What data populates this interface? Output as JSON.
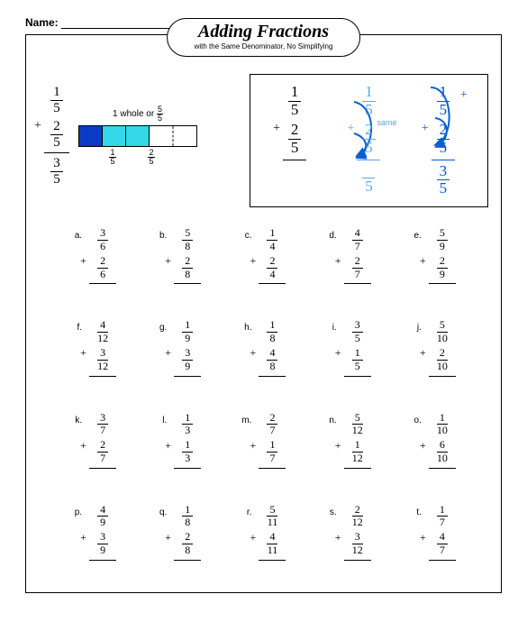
{
  "name_label": "Name:",
  "title": "Adding Fractions",
  "subtitle": "with the Same Denominator, No Simplifying",
  "bar_label_prefix": "1 whole or",
  "bar_label_frac": {
    "n": "5",
    "d": "5"
  },
  "example_left": {
    "top": {
      "n": "1",
      "d": "5"
    },
    "bottom": {
      "n": "2",
      "d": "5"
    },
    "result": {
      "n": "3",
      "d": "5"
    }
  },
  "bar": {
    "cells": [
      {
        "color": "#0a3bc7"
      },
      {
        "color": "#35d8e8"
      },
      {
        "color": "#35d8e8"
      },
      {
        "color": "#ffffff",
        "dashed": true
      },
      {
        "color": "#ffffff"
      }
    ],
    "under": [
      {
        "n": "1",
        "d": "5"
      },
      {
        "n": "2",
        "d": "5"
      }
    ]
  },
  "example_right": {
    "same_text": "same",
    "col1": {
      "top": {
        "n": "1",
        "d": "5"
      },
      "bot": {
        "n": "2",
        "d": "5"
      }
    },
    "col2": {
      "top": {
        "n": "1",
        "d": "5"
      },
      "bot": {
        "n": "2",
        "d": "5"
      },
      "res_den": "5"
    },
    "col3": {
      "top": {
        "n": "1",
        "d": "5"
      },
      "bot": {
        "n": "2",
        "d": "5"
      },
      "res": {
        "n": "3",
        "d": "5"
      }
    }
  },
  "colors": {
    "blue": "#0055d4",
    "ltblue": "#56a8e6",
    "arrow": "#0a5fd6"
  },
  "problems": [
    {
      "l": "a.",
      "a": {
        "n": "3",
        "d": "6"
      },
      "b": {
        "n": "2",
        "d": "6"
      }
    },
    {
      "l": "b.",
      "a": {
        "n": "5",
        "d": "8"
      },
      "b": {
        "n": "2",
        "d": "8"
      }
    },
    {
      "l": "c.",
      "a": {
        "n": "1",
        "d": "4"
      },
      "b": {
        "n": "2",
        "d": "4"
      }
    },
    {
      "l": "d.",
      "a": {
        "n": "4",
        "d": "7"
      },
      "b": {
        "n": "2",
        "d": "7"
      }
    },
    {
      "l": "e.",
      "a": {
        "n": "5",
        "d": "9"
      },
      "b": {
        "n": "2",
        "d": "9"
      }
    },
    {
      "l": "f.",
      "a": {
        "n": "4",
        "d": "12"
      },
      "b": {
        "n": "3",
        "d": "12"
      }
    },
    {
      "l": "g.",
      "a": {
        "n": "1",
        "d": "9"
      },
      "b": {
        "n": "3",
        "d": "9"
      }
    },
    {
      "l": "h.",
      "a": {
        "n": "1",
        "d": "8"
      },
      "b": {
        "n": "4",
        "d": "8"
      }
    },
    {
      "l": "i.",
      "a": {
        "n": "3",
        "d": "5"
      },
      "b": {
        "n": "1",
        "d": "5"
      }
    },
    {
      "l": "j.",
      "a": {
        "n": "5",
        "d": "10"
      },
      "b": {
        "n": "2",
        "d": "10"
      }
    },
    {
      "l": "k.",
      "a": {
        "n": "3",
        "d": "7"
      },
      "b": {
        "n": "2",
        "d": "7"
      }
    },
    {
      "l": "l.",
      "a": {
        "n": "1",
        "d": "3"
      },
      "b": {
        "n": "1",
        "d": "3"
      }
    },
    {
      "l": "m.",
      "a": {
        "n": "2",
        "d": "7"
      },
      "b": {
        "n": "1",
        "d": "7"
      }
    },
    {
      "l": "n.",
      "a": {
        "n": "5",
        "d": "12"
      },
      "b": {
        "n": "1",
        "d": "12"
      }
    },
    {
      "l": "o.",
      "a": {
        "n": "1",
        "d": "10"
      },
      "b": {
        "n": "6",
        "d": "10"
      }
    },
    {
      "l": "p.",
      "a": {
        "n": "4",
        "d": "9"
      },
      "b": {
        "n": "3",
        "d": "9"
      }
    },
    {
      "l": "q.",
      "a": {
        "n": "1",
        "d": "8"
      },
      "b": {
        "n": "2",
        "d": "8"
      }
    },
    {
      "l": "r.",
      "a": {
        "n": "5",
        "d": "11"
      },
      "b": {
        "n": "4",
        "d": "11"
      }
    },
    {
      "l": "s.",
      "a": {
        "n": "2",
        "d": "12"
      },
      "b": {
        "n": "3",
        "d": "12"
      }
    },
    {
      "l": "t.",
      "a": {
        "n": "1",
        "d": "7"
      },
      "b": {
        "n": "4",
        "d": "7"
      }
    }
  ]
}
